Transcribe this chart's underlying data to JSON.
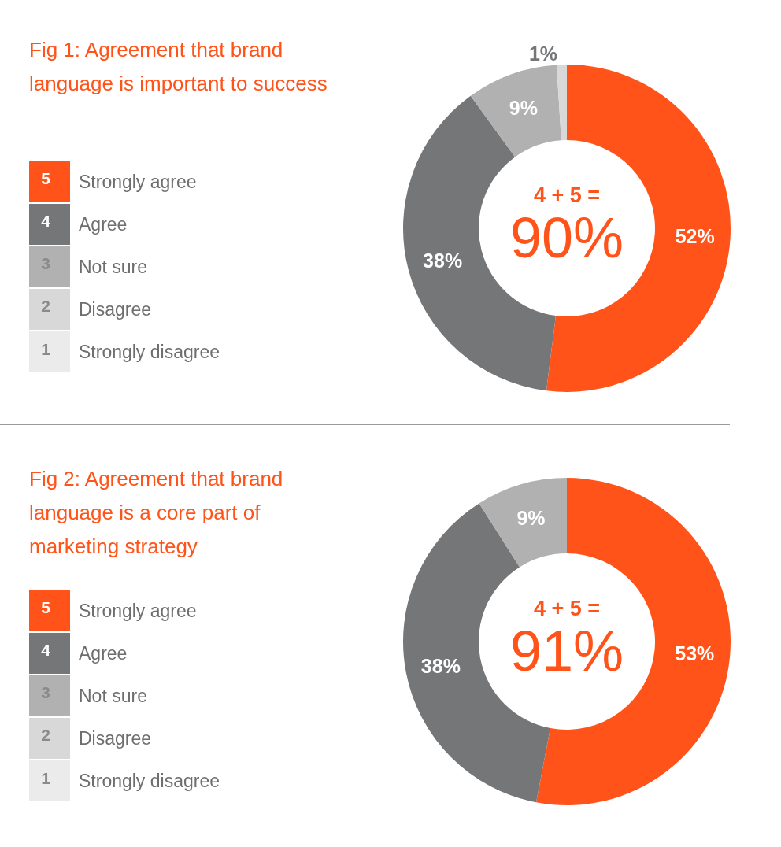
{
  "chart_data": [
    {
      "type": "donut",
      "title": "Fig 1: Agreement that brand language is important to success",
      "categories": [
        "Strongly agree",
        "Agree",
        "Not sure",
        "Disagree",
        "Strongly disagree"
      ],
      "values": [
        52,
        38,
        9,
        1,
        0
      ],
      "colors": [
        "#ff5319",
        "#747678",
        "#b1b1b1",
        "#d8d8d8",
        "#ebebeb"
      ],
      "value_labels": [
        "52%",
        "38%",
        "9%",
        "1%",
        null
      ],
      "legend": "left",
      "annotations": [
        "4 + 5 =",
        "90%",
        "5",
        "4",
        "3",
        "2",
        "1"
      ]
    },
    {
      "type": "donut",
      "title": "Fig 2: Agreement that brand language is a core part of marketing strategy",
      "categories": [
        "Strongly agree",
        "Agree",
        "Not sure",
        "Disagree",
        "Strongly disagree"
      ],
      "values": [
        53,
        38,
        9,
        0,
        0
      ],
      "colors": [
        "#ff5319",
        "#747678",
        "#b1b1b1",
        "#d8d8d8",
        "#ebebeb"
      ],
      "value_labels": [
        "53%",
        "38%",
        "9%",
        null,
        null
      ],
      "legend": "left",
      "annotations": [
        "4 + 5 =",
        "91%",
        "5",
        "4",
        "3",
        "2",
        "1"
      ]
    }
  ]
}
